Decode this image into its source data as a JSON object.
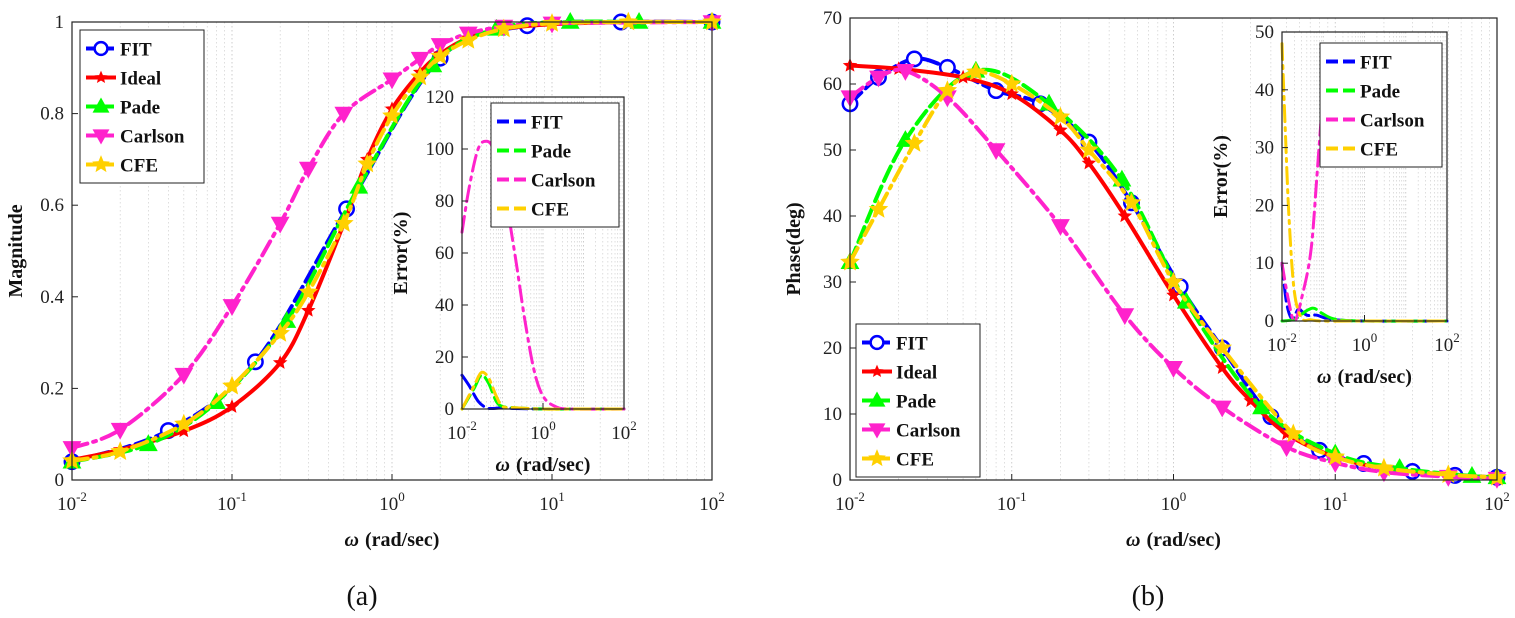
{
  "chart_data": [
    {
      "type": "line",
      "caption": "(a)",
      "xlabel_symbol": "ω",
      "xlabel": "(rad/sec)",
      "ylabel": "Magnitude",
      "x_scale": "log",
      "xlim": [
        0.01,
        100
      ],
      "ylim": [
        0,
        1
      ],
      "yticks": [
        0,
        0.2,
        0.4,
        0.6,
        0.8,
        1
      ],
      "ytick_labels": [
        "0",
        "0.2",
        "0.4",
        "0.6",
        "0.8",
        "1"
      ],
      "xticks": [
        0.01,
        0.1,
        1,
        10,
        100
      ],
      "xtick_base": "10",
      "xtick_exponents": [
        "-2",
        "-1",
        "0",
        "1",
        "2"
      ],
      "grid": true,
      "legend": "top-left",
      "series": [
        {
          "name": "FIT",
          "color": "#0000ff",
          "marker": "circle",
          "x": [
            0.01,
            0.04,
            0.14,
            0.52,
            2.0,
            7.0,
            27,
            100
          ],
          "y": [
            0.04,
            0.108,
            0.258,
            0.592,
            0.921,
            0.992,
            1.0,
            1.0
          ]
        },
        {
          "name": "Ideal",
          "color": "#ff0000",
          "marker": "star",
          "x": [
            0.01,
            0.02,
            0.05,
            0.1,
            0.2,
            0.3,
            0.5,
            0.7,
            1.0,
            1.5,
            2.0,
            3.0,
            5.0,
            10,
            30,
            100
          ],
          "y": [
            0.044,
            0.066,
            0.107,
            0.16,
            0.256,
            0.37,
            0.56,
            0.7,
            0.81,
            0.89,
            0.93,
            0.965,
            0.985,
            0.995,
            1.0,
            1.0
          ]
        },
        {
          "name": "Pade",
          "color": "#00ff00",
          "marker": "triangle-up",
          "x": [
            0.01,
            0.03,
            0.08,
            0.22,
            0.62,
            1.8,
            4.5,
            13,
            35,
            100
          ],
          "y": [
            0.04,
            0.078,
            0.17,
            0.347,
            0.64,
            0.905,
            0.985,
            1.0,
            1.0,
            1.0
          ]
        },
        {
          "name": "Carlson",
          "color": "#ff22cc",
          "marker": "triangle-down",
          "x": [
            0.01,
            0.02,
            0.05,
            0.1,
            0.2,
            0.3,
            0.5,
            1.0,
            1.5,
            2.0,
            3.0,
            5.0,
            10,
            100
          ],
          "y": [
            0.07,
            0.11,
            0.23,
            0.38,
            0.56,
            0.68,
            0.8,
            0.875,
            0.92,
            0.95,
            0.975,
            0.99,
            0.997,
            1.0
          ]
        },
        {
          "name": "CFE",
          "color": "#ffd000",
          "marker": "star",
          "x": [
            0.01,
            0.02,
            0.05,
            0.1,
            0.2,
            0.3,
            0.5,
            0.7,
            1.0,
            1.5,
            2.0,
            3.0,
            5.0,
            10,
            30,
            100
          ],
          "y": [
            0.042,
            0.062,
            0.122,
            0.205,
            0.32,
            0.41,
            0.56,
            0.69,
            0.795,
            0.88,
            0.925,
            0.96,
            0.985,
            0.997,
            1.0,
            1.0
          ]
        }
      ],
      "inset": {
        "ylabel": "Error(%)",
        "xlabel_symbol": "ω",
        "xlabel": "(rad/sec)",
        "x_scale": "log",
        "xlim": [
          0.01,
          100
        ],
        "ylim": [
          0,
          120
        ],
        "yticks": [
          0,
          20,
          40,
          60,
          80,
          100,
          120
        ],
        "ytick_labels": [
          "0",
          "20",
          "40",
          "60",
          "80",
          "100",
          "120"
        ],
        "xticks": [
          0.01,
          1,
          100
        ],
        "xtick_base": "10",
        "xtick_exponents": [
          "-2",
          "0",
          "2"
        ],
        "legend": "top-right",
        "series": [
          {
            "name": "FIT",
            "color": "#0000ff",
            "x": [
              0.01,
              0.015,
              0.025,
              0.04,
              0.06,
              0.1,
              0.2,
              1,
              10,
              100
            ],
            "y": [
              13,
              9,
              3,
              0.5,
              0.2,
              0.5,
              0.2,
              0,
              0,
              0
            ]
          },
          {
            "name": "Pade",
            "color": "#00ff00",
            "x": [
              0.01,
              0.02,
              0.03,
              0.045,
              0.07,
              0.1,
              0.2,
              1,
              10,
              100
            ],
            "y": [
              0,
              8,
              13,
              10,
              3,
              1,
              0.5,
              0,
              0,
              0
            ]
          },
          {
            "name": "Carlson",
            "color": "#ff22cc",
            "x": [
              0.01,
              0.015,
              0.025,
              0.04,
              0.06,
              0.1,
              0.2,
              0.35,
              0.6,
              1,
              2,
              5,
              100
            ],
            "y": [
              68,
              85,
              100,
              103,
              100,
              88,
              60,
              35,
              15,
              5,
              1,
              0,
              0
            ]
          },
          {
            "name": "CFE",
            "color": "#ffd000",
            "x": [
              0.01,
              0.02,
              0.03,
              0.045,
              0.07,
              0.1,
              0.2,
              1,
              10,
              100
            ],
            "y": [
              0,
              9,
              14,
              12,
              5,
              1,
              0.5,
              0,
              0,
              0
            ]
          }
        ]
      }
    },
    {
      "type": "line",
      "caption": "(b)",
      "xlabel_symbol": "ω",
      "xlabel": "(rad/sec)",
      "ylabel": "Phase(deg)",
      "x_scale": "log",
      "xlim": [
        0.01,
        100
      ],
      "ylim": [
        0,
        70
      ],
      "yticks": [
        0,
        10,
        20,
        30,
        40,
        50,
        60,
        70
      ],
      "ytick_labels": [
        "0",
        "10",
        "20",
        "30",
        "40",
        "50",
        "60",
        "70"
      ],
      "xticks": [
        0.01,
        0.1,
        1,
        10,
        100
      ],
      "xtick_base": "10",
      "xtick_exponents": [
        "-2",
        "-1",
        "0",
        "1",
        "2"
      ],
      "grid": true,
      "legend": "bottom-left",
      "series": [
        {
          "name": "FIT",
          "color": "#0000ff",
          "marker": "circle",
          "x": [
            0.01,
            0.015,
            0.025,
            0.04,
            0.08,
            0.15,
            0.3,
            0.55,
            1.1,
            2.0,
            4.0,
            8.0,
            15,
            30,
            55,
            100
          ],
          "y": [
            57,
            61,
            63.8,
            62.5,
            59,
            57,
            51.2,
            42,
            29.3,
            20,
            9.6,
            4.5,
            2.5,
            1.3,
            0.7,
            0.4
          ]
        },
        {
          "name": "Ideal",
          "color": "#ff0000",
          "marker": "star",
          "x": [
            0.01,
            0.02,
            0.05,
            0.1,
            0.2,
            0.3,
            0.5,
            1.0,
            2.0,
            3.0,
            5.0,
            10,
            20,
            50,
            100
          ],
          "y": [
            62.8,
            62.3,
            61.0,
            58.5,
            53,
            48,
            40,
            28,
            17,
            12,
            7,
            3.5,
            1.8,
            0.8,
            0.4
          ]
        },
        {
          "name": "Pade",
          "color": "#00ff00",
          "marker": "triangle-up",
          "x": [
            0.01,
            0.022,
            0.06,
            0.17,
            0.48,
            1.2,
            3.5,
            10,
            25,
            70,
            100
          ],
          "y": [
            33,
            51.5,
            62,
            57,
            45.5,
            27,
            11,
            4,
            1.8,
            0.6,
            0.4
          ]
        },
        {
          "name": "Carlson",
          "color": "#ff22cc",
          "marker": "triangle-down",
          "x": [
            0.01,
            0.015,
            0.022,
            0.04,
            0.08,
            0.2,
            0.5,
            1.0,
            2.0,
            5.0,
            10,
            20,
            50,
            100
          ],
          "y": [
            58,
            61,
            62,
            58,
            50,
            38.5,
            25,
            17,
            11,
            5,
            2.6,
            1.2,
            0.5,
            0.2
          ]
        },
        {
          "name": "CFE",
          "color": "#ffd000",
          "marker": "star",
          "x": [
            0.01,
            0.015,
            0.025,
            0.04,
            0.06,
            0.1,
            0.2,
            0.3,
            0.55,
            1.0,
            2.0,
            5.5,
            10,
            20,
            50,
            100
          ],
          "y": [
            33,
            41,
            51,
            59,
            61.8,
            60,
            55,
            50,
            42,
            30,
            20,
            7,
            3.5,
            1.8,
            0.8,
            0.4
          ]
        }
      ],
      "inset": {
        "ylabel": "Error(%)",
        "xlabel_symbol": "ω",
        "xlabel": "(rad/sec)",
        "x_scale": "log",
        "xlim": [
          0.01,
          100
        ],
        "ylim": [
          0,
          50
        ],
        "yticks": [
          0,
          10,
          20,
          30,
          40,
          50
        ],
        "ytick_labels": [
          "0",
          "10",
          "20",
          "30",
          "40",
          "50"
        ],
        "xticks": [
          0.01,
          1,
          100
        ],
        "xtick_base": "10",
        "xtick_exponents": [
          "-2",
          "0",
          "2"
        ],
        "legend": "top-right",
        "series": [
          {
            "name": "FIT",
            "color": "#0000ff",
            "x": [
              0.01,
              0.013,
              0.018,
              0.025,
              0.04,
              0.07,
              0.15,
              1,
              100
            ],
            "y": [
              10,
              3,
              0.3,
              2,
              1,
              1,
              0.3,
              0,
              0
            ]
          },
          {
            "name": "Pade",
            "color": "#00ff00",
            "x": [
              0.01,
              0.02,
              0.04,
              0.06,
              0.1,
              0.2,
              1,
              100
            ],
            "y": [
              0,
              0.3,
              1.8,
              2.2,
              1.2,
              0.3,
              0,
              0
            ]
          },
          {
            "name": "Carlson",
            "color": "#ff22cc",
            "x": [
              0.01,
              0.014,
              0.02,
              0.03,
              0.05,
              0.07,
              0.1
            ],
            "y": [
              10,
              4,
              0,
              4,
              12,
              25,
              40
            ]
          },
          {
            "name": "CFE",
            "color": "#ffd000",
            "x": [
              0.01,
              0.012,
              0.015,
              0.02,
              0.03,
              0.05,
              0.1,
              1,
              100
            ],
            "y": [
              48,
              33,
              17,
              5,
              0.5,
              0.2,
              0,
              0,
              0
            ]
          }
        ]
      }
    }
  ]
}
